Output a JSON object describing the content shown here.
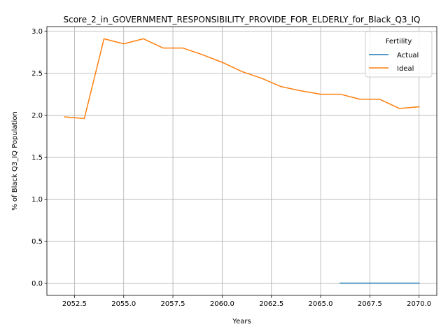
{
  "chart_data": {
    "type": "line",
    "title": "Score_2_in_GOVERNMENT_RESPONSIBILITY_PROVIDE_FOR_ELDERLY_for_Black_Q3_IQ",
    "xlabel": "Years",
    "ylabel": "% of Black Q3_IQ Population",
    "xlim": [
      2051.1,
      2070.9
    ],
    "ylim": [
      -0.1455,
      3.055
    ],
    "xticks": [
      2052.5,
      2055.0,
      2057.5,
      2060.0,
      2062.5,
      2065.0,
      2067.5,
      2070.0
    ],
    "xtick_labels": [
      "2052.5",
      "2055.0",
      "2057.5",
      "2060.0",
      "2062.5",
      "2065.0",
      "2067.5",
      "2070.0"
    ],
    "yticks": [
      0.0,
      0.5,
      1.0,
      1.5,
      2.0,
      2.5,
      3.0
    ],
    "ytick_labels": [
      "0.0",
      "0.5",
      "1.0",
      "1.5",
      "2.0",
      "2.5",
      "3.0"
    ],
    "grid": true,
    "legend": {
      "title": "Fertility",
      "placement": "top-right"
    },
    "series": [
      {
        "name": "Actual",
        "color": "#1f77b4",
        "x": [
          2066,
          2067,
          2068,
          2069,
          2070
        ],
        "y": [
          0.0,
          0.0,
          0.0,
          0.0,
          0.0
        ]
      },
      {
        "name": "Ideal",
        "color": "#ff7f0e",
        "x": [
          2052,
          2053,
          2054,
          2055,
          2056,
          2057,
          2058,
          2059,
          2060,
          2061,
          2062,
          2063,
          2064,
          2065,
          2066,
          2067,
          2068,
          2069,
          2070
        ],
        "y": [
          1.98,
          1.96,
          2.91,
          2.85,
          2.91,
          2.8,
          2.8,
          2.72,
          2.63,
          2.52,
          2.44,
          2.34,
          2.29,
          2.25,
          2.25,
          2.19,
          2.19,
          2.08,
          2.1
        ]
      }
    ]
  }
}
